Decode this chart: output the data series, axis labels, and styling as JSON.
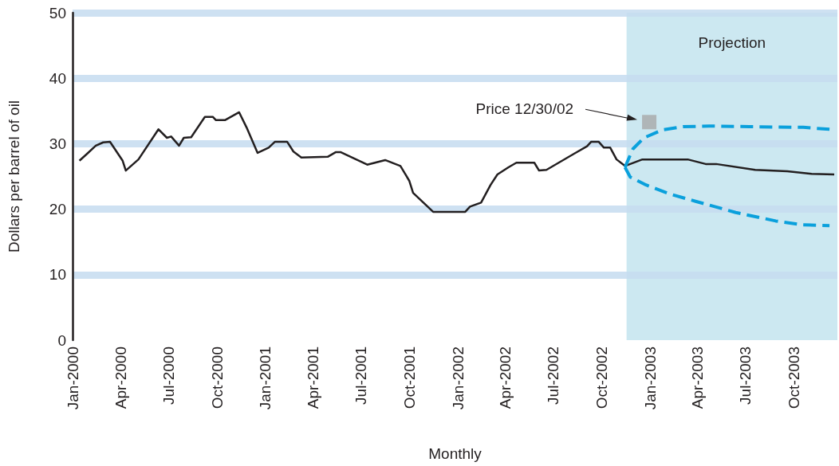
{
  "chart_data": {
    "type": "line",
    "xlabel": "Monthly",
    "ylabel": "Dollars per barrel of oil",
    "xlim": [
      "2000-01-01",
      "2003-12-22"
    ],
    "xticks": [
      {
        "value": "2000-01-01",
        "label": "Jan-2000"
      },
      {
        "value": "2000-04-01",
        "label": "Apr-2000"
      },
      {
        "value": "2000-07-01",
        "label": "Jul-2000"
      },
      {
        "value": "2000-10-01",
        "label": "Oct-2000"
      },
      {
        "value": "2001-01-01",
        "label": "Jan-2001"
      },
      {
        "value": "2001-04-01",
        "label": "Apr-2001"
      },
      {
        "value": "2001-07-01",
        "label": "Jul-2001"
      },
      {
        "value": "2001-10-01",
        "label": "Oct-2001"
      },
      {
        "value": "2002-01-01",
        "label": "Jan-2002"
      },
      {
        "value": "2002-04-01",
        "label": "Apr-2002"
      },
      {
        "value": "2002-07-01",
        "label": "Jul-2002"
      },
      {
        "value": "2002-10-01",
        "label": "Oct-2002"
      },
      {
        "value": "2003-01-01",
        "label": "Jan-2003"
      },
      {
        "value": "2003-04-01",
        "label": "Apr-2003"
      },
      {
        "value": "2003-07-01",
        "label": "Jul-2003"
      },
      {
        "value": "2003-10-01",
        "label": "Oct-2003"
      }
    ],
    "ylim": [
      0,
      50
    ],
    "yticks": [
      0,
      10,
      20,
      30,
      40,
      50
    ],
    "grid": "y",
    "marker": "none",
    "bands": [
      {
        "axis": "x",
        "from": "2002-11-17",
        "to": "2003-12-22",
        "label": "Projection",
        "color": "#cce8f1"
      }
    ],
    "annotations": [
      "Price 12/30/02"
    ],
    "series": [
      {
        "color": "#231f20",
        "line_style": "solid",
        "x": [
          "2000-01-14",
          "2000-01-29",
          "2000-02-14",
          "2000-02-28",
          "2000-03-12",
          "2000-04-05",
          "2000-04-11",
          "2000-05-05",
          "2000-06-12",
          "2000-06-28",
          "2000-07-06",
          "2000-07-21",
          "2000-07-30",
          "2000-08-13",
          "2000-09-08",
          "2000-09-23",
          "2000-09-29",
          "2000-10-16",
          "2000-11-12",
          "2000-11-26",
          "2000-12-17",
          "2001-01-07",
          "2001-01-19",
          "2001-02-11",
          "2001-02-23",
          "2001-03-10",
          "2001-04-29",
          "2001-05-14",
          "2001-05-24",
          "2001-07-13",
          "2001-08-16",
          "2001-09-14",
          "2001-10-01",
          "2001-10-08",
          "2001-11-15",
          "2002-01-15",
          "2002-01-24",
          "2002-02-14",
          "2002-03-04",
          "2002-03-17",
          "2002-04-07",
          "2002-04-22",
          "2002-05-26",
          "2002-06-04",
          "2002-06-18",
          "2002-08-10",
          "2002-09-03",
          "2002-09-11",
          "2002-09-25",
          "2002-10-05",
          "2002-10-17",
          "2002-10-29",
          "2002-11-14",
          "2002-12-17",
          "2003-03-13",
          "2003-04-16",
          "2003-05-06",
          "2003-07-19",
          "2003-09-18",
          "2003-11-03",
          "2003-12-16"
        ],
        "values": [
          27.4,
          28.5,
          29.7,
          30.2,
          30.3,
          27.4,
          25.9,
          27.6,
          32.2,
          30.9,
          31.1,
          29.7,
          30.9,
          31.0,
          34.1,
          34.1,
          33.6,
          33.6,
          34.8,
          32.5,
          28.6,
          29.4,
          30.3,
          30.3,
          28.8,
          27.9,
          28.0,
          28.7,
          28.7,
          26.8,
          27.5,
          26.6,
          24.3,
          22.5,
          19.6,
          19.6,
          20.4,
          21.0,
          23.7,
          25.3,
          26.4,
          27.1,
          27.1,
          25.9,
          26.0,
          28.5,
          29.6,
          30.3,
          30.3,
          29.4,
          29.4,
          27.6,
          26.6,
          27.6,
          27.6,
          26.9,
          26.9,
          26.0,
          25.8,
          25.4,
          25.3
        ]
      },
      {
        "color": "#0aa0dc",
        "line_style": "dashed",
        "x": [
          "2002-11-14",
          "2002-11-29",
          "2002-12-20",
          "2003-01-24",
          "2003-03-04",
          "2003-04-23",
          "2003-07-08",
          "2003-10-18",
          "2003-12-07"
        ],
        "values": [
          26.4,
          29.2,
          30.9,
          32.1,
          32.6,
          32.7,
          32.6,
          32.5,
          32.2
        ]
      },
      {
        "color": "#0aa0dc",
        "line_style": "dashed",
        "x": [
          "2002-11-14",
          "2002-11-24",
          "2002-12-24",
          "2003-02-04",
          "2003-03-28",
          "2003-06-12",
          "2003-08-27",
          "2003-10-18",
          "2003-12-07"
        ],
        "values": [
          26.4,
          24.9,
          23.7,
          22.4,
          21.2,
          19.5,
          18.2,
          17.6,
          17.5
        ]
      },
      {
        "type": "scatter",
        "marker": "square",
        "color": "#a7a7a9",
        "x": [
          "2002-12-30"
        ],
        "values": [
          33.3
        ]
      }
    ]
  }
}
